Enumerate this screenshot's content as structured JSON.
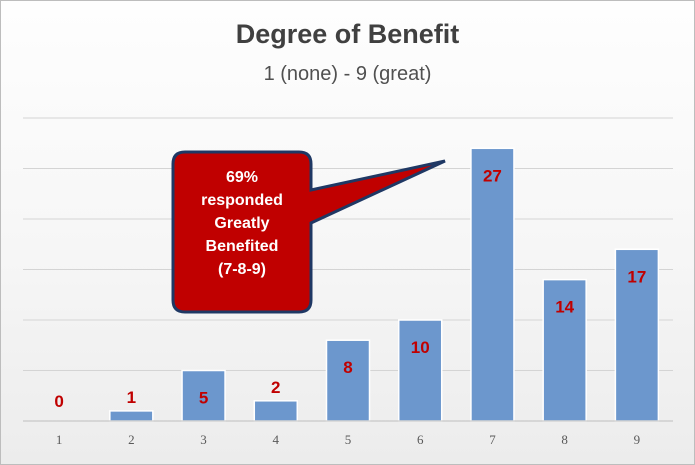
{
  "chart_data": {
    "type": "bar",
    "title": "Degree of Benefit",
    "subtitle": "1 (none) - 9 (great)",
    "categories": [
      "1",
      "2",
      "3",
      "4",
      "5",
      "6",
      "7",
      "8",
      "9"
    ],
    "values": [
      0,
      1,
      5,
      2,
      8,
      10,
      27,
      14,
      17
    ],
    "xlabel": "",
    "ylabel": "",
    "ylim": [
      0,
      30
    ],
    "grid": true,
    "legend": "none",
    "bar_color": "#6c97cd",
    "data_label_color": "#c00000",
    "annotation": {
      "lines": [
        "69%",
        "responded",
        "Greatly",
        "Benefited",
        "(7-8-9)"
      ],
      "fill_color": "#c00000",
      "border_color": "#1f3864",
      "text_color": "#ffffff"
    }
  }
}
